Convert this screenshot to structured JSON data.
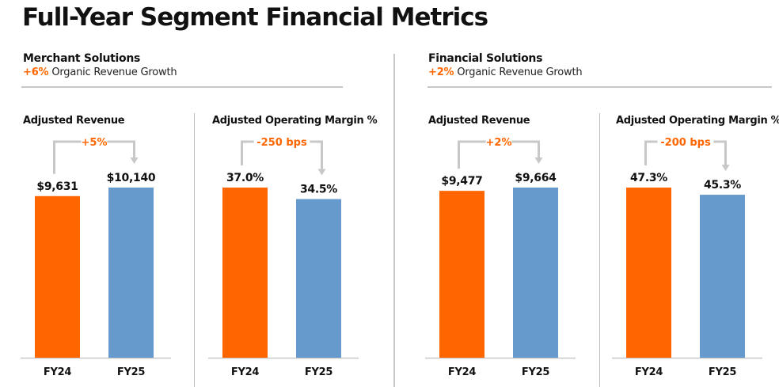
{
  "page": {
    "title": "Full-Year Segment Financial Metrics"
  },
  "colors": {
    "fy24": "#ff6600",
    "fy25": "#6699cc",
    "accent": "#ff6600",
    "connector": "#c8c8c8"
  },
  "segments": [
    {
      "name": "Merchant Solutions",
      "growth_pct": "+6%",
      "growth_label": "Organic Revenue Growth"
    },
    {
      "name": "Financial Solutions",
      "growth_pct": "+2%",
      "growth_label": "Organic Revenue Growth"
    }
  ],
  "chart_data": [
    {
      "type": "bar",
      "title": "Adjusted Revenue",
      "segment": "Merchant Solutions",
      "categories": [
        "FY24",
        "FY25"
      ],
      "values": [
        9631,
        10140
      ],
      "labels": [
        "$9,631",
        "$10,140"
      ],
      "change": "+5%",
      "ylim": [
        0,
        10140
      ]
    },
    {
      "type": "bar",
      "title": "Adjusted Operating Margin %",
      "segment": "Merchant Solutions",
      "categories": [
        "FY24",
        "FY25"
      ],
      "values": [
        37.0,
        34.5
      ],
      "labels": [
        "37.0%",
        "34.5%"
      ],
      "change": "-250 bps",
      "ylim": [
        0,
        37.0
      ]
    },
    {
      "type": "bar",
      "title": "Adjusted Revenue",
      "segment": "Financial Solutions",
      "categories": [
        "FY24",
        "FY25"
      ],
      "values": [
        9477,
        9664
      ],
      "labels": [
        "$9,477",
        "$9,664"
      ],
      "change": "+2%",
      "ylim": [
        0,
        9664
      ]
    },
    {
      "type": "bar",
      "title": "Adjusted Operating Margin %",
      "segment": "Financial Solutions",
      "categories": [
        "FY24",
        "FY25"
      ],
      "values": [
        47.3,
        45.3
      ],
      "labels": [
        "47.3%",
        "45.3%"
      ],
      "change": "-200 bps",
      "ylim": [
        0,
        47.3
      ]
    }
  ]
}
